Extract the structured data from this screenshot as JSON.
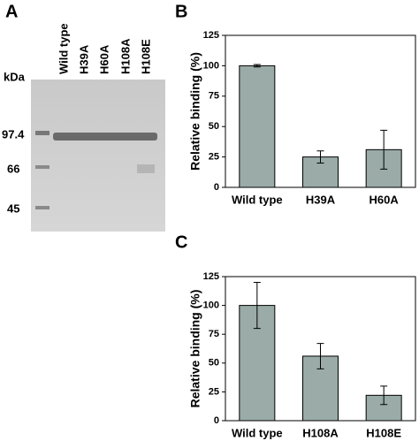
{
  "gel": {
    "panel": "A",
    "unit": "kDa",
    "lanes": [
      "Wild type",
      "H39A",
      "H60A",
      "H108A",
      "H108E"
    ],
    "markers": [
      "97.4",
      "66",
      "45"
    ]
  },
  "chart_data": [
    {
      "type": "bar",
      "panel": "B",
      "y_label": "Relative binding (%)",
      "categories": [
        "Wild type",
        "H39A",
        "H60A"
      ],
      "values": [
        100,
        25,
        31
      ],
      "errors": [
        1,
        5,
        16
      ],
      "color": "#9aaba8",
      "ylim": [
        0,
        125
      ],
      "yticks": [
        0,
        25,
        50,
        75,
        100,
        125
      ]
    },
    {
      "type": "bar",
      "panel": "C",
      "y_label": "Relative binding (%)",
      "categories": [
        "Wild type",
        "H108A",
        "H108E"
      ],
      "values": [
        100,
        56,
        22
      ],
      "errors": [
        20,
        11,
        8
      ],
      "color": "#9aaba8",
      "ylim": [
        0,
        125
      ],
      "yticks": [
        0,
        25,
        50,
        75,
        100,
        125
      ]
    }
  ]
}
